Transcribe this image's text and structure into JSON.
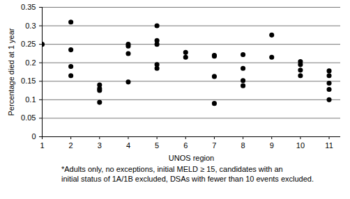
{
  "chart_data": {
    "type": "scatter",
    "x_label": "UNOS region",
    "y_label": "Percentage died at 1 year",
    "annotations": [
      "*Adults only, no exceptions, initial MELD ≥ 15, candidates with an",
      "initial status of 1A/1B excluded, DSAs with fewer than 10 events excluded."
    ],
    "x": [
      1,
      2,
      2,
      2,
      2,
      3,
      3,
      3,
      3,
      4,
      4,
      4,
      4,
      5,
      5,
      5,
      5,
      5,
      6,
      6,
      7,
      7,
      7,
      7,
      8,
      8,
      8,
      8,
      9,
      9,
      10,
      10,
      10,
      10,
      11,
      11,
      11,
      11,
      11
    ],
    "values": [
      0.25,
      0.31,
      0.235,
      0.19,
      0.165,
      0.14,
      0.13,
      0.125,
      0.093,
      0.25,
      0.245,
      0.225,
      0.148,
      0.3,
      0.26,
      0.25,
      0.195,
      0.185,
      0.228,
      0.215,
      0.22,
      0.218,
      0.163,
      0.09,
      0.222,
      0.185,
      0.152,
      0.138,
      0.275,
      0.215,
      0.203,
      0.195,
      0.18,
      0.165,
      0.178,
      0.165,
      0.145,
      0.128,
      0.1
    ],
    "color": "#000000",
    "marker": "circle",
    "xlim": [
      1,
      11.4
    ],
    "xticks": [
      1,
      2,
      3,
      4,
      5,
      6,
      7,
      8,
      9,
      10,
      11
    ],
    "ylim": [
      0,
      0.35
    ],
    "yticks": [
      0,
      0.05,
      0.1,
      0.15,
      0.2,
      0.25,
      0.3,
      0.35
    ],
    "grid": true
  }
}
